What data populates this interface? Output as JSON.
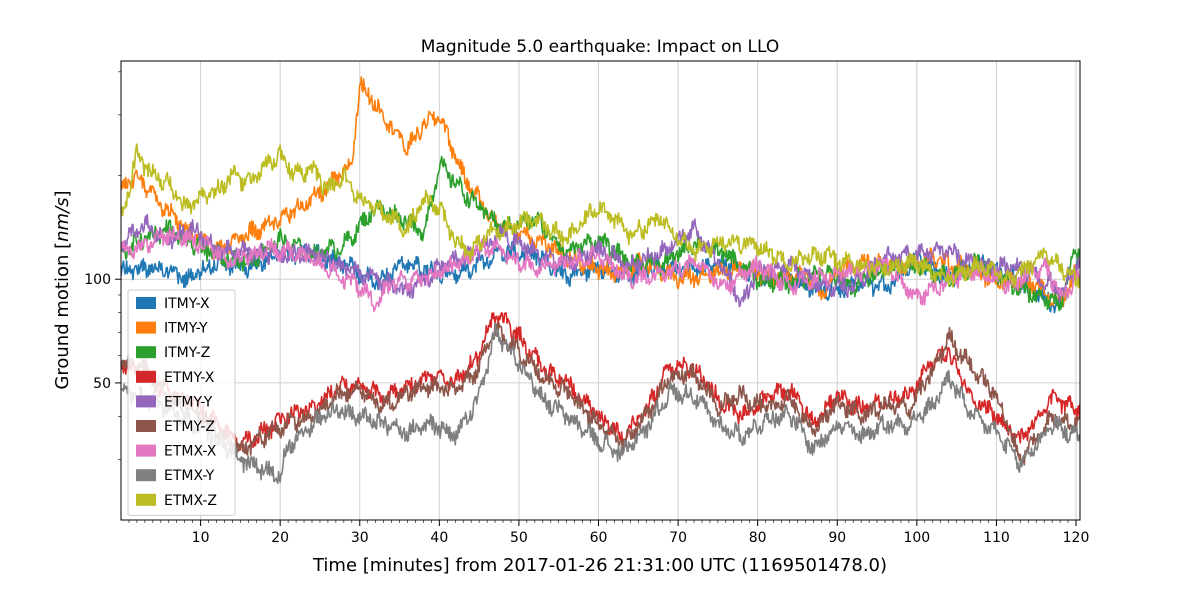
{
  "chart_data": {
    "type": "line",
    "title": "Magnitude 5.0 earthquake: Impact on LLO",
    "xlabel": "Time [minutes] from 2017-01-26 21:31:00 UTC (1169501478.0)",
    "ylabel": "Ground motion [nm/s]",
    "ylabel_parts": {
      "main": "Ground motion [",
      "unit": "nm/s",
      "close": "]"
    },
    "xlim": [
      0,
      120.5
    ],
    "ylim": [
      20,
      430
    ],
    "yscale": "log",
    "x_ticks": [
      10,
      20,
      30,
      40,
      50,
      60,
      70,
      80,
      90,
      100,
      110,
      120
    ],
    "y_ticks": [
      50,
      100
    ],
    "y_tick_labels": [
      "50",
      "100"
    ],
    "grid": true,
    "legend_position": "lower-left",
    "series": [
      {
        "name": "ITMY-X",
        "color": "#1f77b4",
        "x": [
          0,
          3,
          6,
          8,
          12,
          16,
          20,
          24,
          28,
          32,
          36,
          40,
          44,
          48,
          52,
          56,
          60,
          64,
          68,
          72,
          76,
          80,
          84,
          88,
          92,
          96,
          100,
          104,
          108,
          112,
          116,
          118,
          120
        ],
        "y": [
          105,
          108,
          107,
          99,
          112,
          108,
          120,
          118,
          112,
          97,
          112,
          102,
          108,
          120,
          118,
          102,
          108,
          103,
          108,
          106,
          110,
          102,
          100,
          93,
          96,
          95,
          114,
          100,
          112,
          100,
          88,
          84,
          110
        ]
      },
      {
        "name": "ITMY-Y",
        "color": "#ff7f0e",
        "x": [
          0,
          2,
          5,
          8,
          12,
          16,
          20,
          24,
          26,
          29,
          30,
          33,
          36,
          38,
          40,
          43,
          47,
          51,
          55,
          58,
          62,
          66,
          70,
          74,
          78,
          82,
          86,
          88,
          90,
          94,
          98,
          102,
          106,
          110,
          114,
          118,
          120
        ],
        "y": [
          185,
          200,
          165,
          140,
          120,
          135,
          150,
          170,
          185,
          215,
          370,
          300,
          240,
          280,
          300,
          200,
          145,
          135,
          120,
          110,
          105,
          112,
          100,
          104,
          108,
          100,
          105,
          90,
          105,
          112,
          110,
          115,
          108,
          100,
          98,
          85,
          105
        ]
      },
      {
        "name": "ITMY-Z",
        "color": "#2ca02c",
        "x": [
          0,
          3,
          6,
          9,
          12,
          16,
          20,
          24,
          28,
          32,
          36,
          38,
          40,
          44,
          48,
          52,
          56,
          60,
          64,
          68,
          72,
          76,
          80,
          84,
          88,
          92,
          96,
          100,
          104,
          108,
          112,
          116,
          118,
          120
        ],
        "y": [
          120,
          132,
          140,
          125,
          118,
          112,
          130,
          118,
          125,
          162,
          148,
          135,
          215,
          170,
          140,
          150,
          120,
          130,
          112,
          110,
          128,
          118,
          100,
          98,
          105,
          95,
          108,
          110,
          102,
          112,
          95,
          88,
          85,
          120
        ]
      },
      {
        "name": "ETMY-X",
        "color": "#d62728",
        "x": [
          0,
          3,
          6,
          9,
          12,
          15,
          18,
          21,
          24,
          27,
          30,
          33,
          36,
          39,
          42,
          45,
          47,
          50,
          53,
          56,
          60,
          63,
          66,
          69,
          72,
          75,
          78,
          81,
          84,
          87,
          90,
          93,
          96,
          99,
          102,
          104,
          107,
          110,
          113,
          117,
          120
        ],
        "y": [
          58,
          52,
          47,
          44,
          38,
          33,
          36,
          40,
          42,
          48,
          50,
          45,
          49,
          52,
          50,
          60,
          80,
          68,
          55,
          50,
          40,
          35,
          42,
          56,
          55,
          45,
          40,
          45,
          48,
          38,
          46,
          42,
          44,
          46,
          58,
          62,
          45,
          40,
          34,
          45,
          42
        ]
      },
      {
        "name": "ETMY-Y",
        "color": "#9467bd",
        "x": [
          0,
          3,
          6,
          9,
          12,
          16,
          20,
          24,
          28,
          32,
          36,
          40,
          44,
          48,
          52,
          56,
          60,
          64,
          68,
          72,
          76,
          78,
          80,
          84,
          88,
          92,
          96,
          100,
          104,
          108,
          112,
          116,
          118,
          120
        ],
        "y": [
          125,
          145,
          130,
          140,
          122,
          120,
          118,
          118,
          108,
          100,
          92,
          108,
          118,
          135,
          120,
          110,
          122,
          110,
          120,
          140,
          105,
          85,
          105,
          110,
          96,
          95,
          115,
          118,
          120,
          110,
          108,
          100,
          92,
          110
        ]
      },
      {
        "name": "ETMY-Z",
        "color": "#8c564b",
        "x": [
          0,
          3,
          6,
          9,
          12,
          15,
          18,
          21,
          24,
          27,
          30,
          33,
          36,
          39,
          42,
          45,
          47,
          50,
          53,
          56,
          60,
          63,
          66,
          69,
          72,
          75,
          78,
          81,
          84,
          87,
          90,
          93,
          96,
          99,
          102,
          104,
          107,
          110,
          113,
          117,
          120
        ],
        "y": [
          58,
          55,
          45,
          42,
          36,
          32,
          35,
          38,
          40,
          46,
          48,
          43,
          47,
          49,
          47,
          55,
          72,
          62,
          52,
          47,
          38,
          33,
          40,
          52,
          53,
          43,
          46,
          42,
          45,
          36,
          44,
          40,
          43,
          42,
          54,
          68,
          55,
          46,
          30,
          40,
          38
        ]
      },
      {
        "name": "ETMX-X",
        "color": "#e377c2",
        "x": [
          0,
          3,
          6,
          10,
          14,
          18,
          22,
          26,
          30,
          32,
          34,
          38,
          42,
          46,
          48,
          52,
          56,
          60,
          64,
          68,
          72,
          76,
          80,
          84,
          88,
          92,
          96,
          100,
          104,
          108,
          112,
          116,
          118,
          120
        ],
        "y": [
          120,
          125,
          135,
          128,
          112,
          122,
          120,
          108,
          95,
          85,
          98,
          100,
          110,
          125,
          120,
          108,
          112,
          118,
          100,
          102,
          112,
          95,
          110,
          96,
          102,
          105,
          112,
          88,
          100,
          105,
          96,
          110,
          90,
          100
        ]
      },
      {
        "name": "ETMX-Y",
        "color": "#7f7f7f",
        "x": [
          0,
          3,
          6,
          9,
          12,
          15,
          18,
          20,
          21,
          24,
          27,
          30,
          33,
          36,
          39,
          42,
          45,
          47,
          50,
          53,
          56,
          60,
          63,
          66,
          69,
          72,
          75,
          78,
          81,
          84,
          87,
          90,
          93,
          96,
          99,
          102,
          104,
          107,
          110,
          113,
          117,
          120
        ],
        "y": [
          48,
          45,
          42,
          38,
          34,
          30,
          28,
          27,
          33,
          38,
          42,
          40,
          38,
          36,
          38,
          35,
          45,
          70,
          58,
          45,
          40,
          34,
          31,
          37,
          47,
          46,
          38,
          35,
          39,
          41,
          32,
          38,
          35,
          38,
          38,
          43,
          52,
          40,
          36,
          29,
          38,
          35
        ]
      },
      {
        "name": "ETMX-Z",
        "color": "#bcbd22",
        "x": [
          0,
          2,
          4,
          6,
          8,
          10,
          12,
          14,
          16,
          18,
          20,
          22,
          24,
          26,
          28,
          30,
          32,
          34,
          36,
          38,
          40,
          42,
          44,
          46,
          48,
          52,
          56,
          60,
          64,
          68,
          72,
          76,
          80,
          84,
          88,
          92,
          96,
          100,
          104,
          108,
          112,
          116,
          120
        ],
        "y": [
          150,
          230,
          200,
          190,
          160,
          170,
          180,
          200,
          190,
          210,
          230,
          200,
          210,
          180,
          200,
          170,
          160,
          150,
          140,
          170,
          160,
          130,
          120,
          135,
          140,
          150,
          130,
          165,
          135,
          150,
          120,
          130,
          125,
          112,
          118,
          110,
          108,
          112,
          100,
          110,
          100,
          118,
          100
        ]
      }
    ]
  }
}
